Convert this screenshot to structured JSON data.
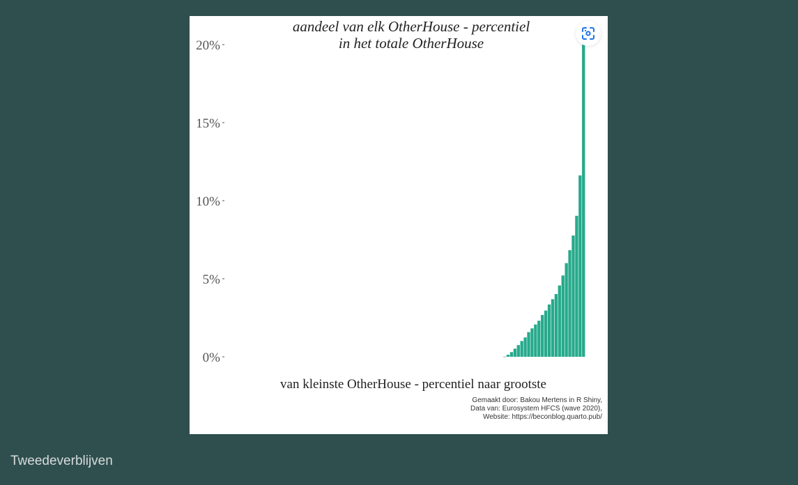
{
  "caption": "Tweedeverblijven",
  "lens_button": {
    "icon": "lens-scan-icon",
    "color": "#1a73e8"
  },
  "chart_data": {
    "type": "bar",
    "title_line1": "aandeel van elk OtherHouse - percentiel",
    "title_line2": "in het totale OtherHouse",
    "xlabel": "van kleinste OtherHouse - percentiel naar grootste",
    "ylabel": "",
    "ylim": [
      0,
      20
    ],
    "yticks": [
      0,
      5,
      10,
      15,
      20
    ],
    "ytick_labels": [
      "0%",
      "5%",
      "10%",
      "15%",
      "20%"
    ],
    "grid": false,
    "bar_color": "#27aa8c",
    "percentiles": 100,
    "nonzero_start_percentile": 77,
    "values_nonzero": [
      0.01,
      0.13,
      0.3,
      0.52,
      0.75,
      1.01,
      1.24,
      1.58,
      1.82,
      2.07,
      2.31,
      2.68,
      2.96,
      3.35,
      3.69,
      4.02,
      4.57,
      5.21,
      6.0,
      6.83,
      7.77,
      9.03,
      11.62,
      20.1
    ],
    "credits": [
      "Gemaakt door: Bakou Mertens in R Shiny,",
      "Data van: Eurosystem HFCS (wave 2020),",
      "Website: https://beconblog.quarto.pub/"
    ]
  }
}
